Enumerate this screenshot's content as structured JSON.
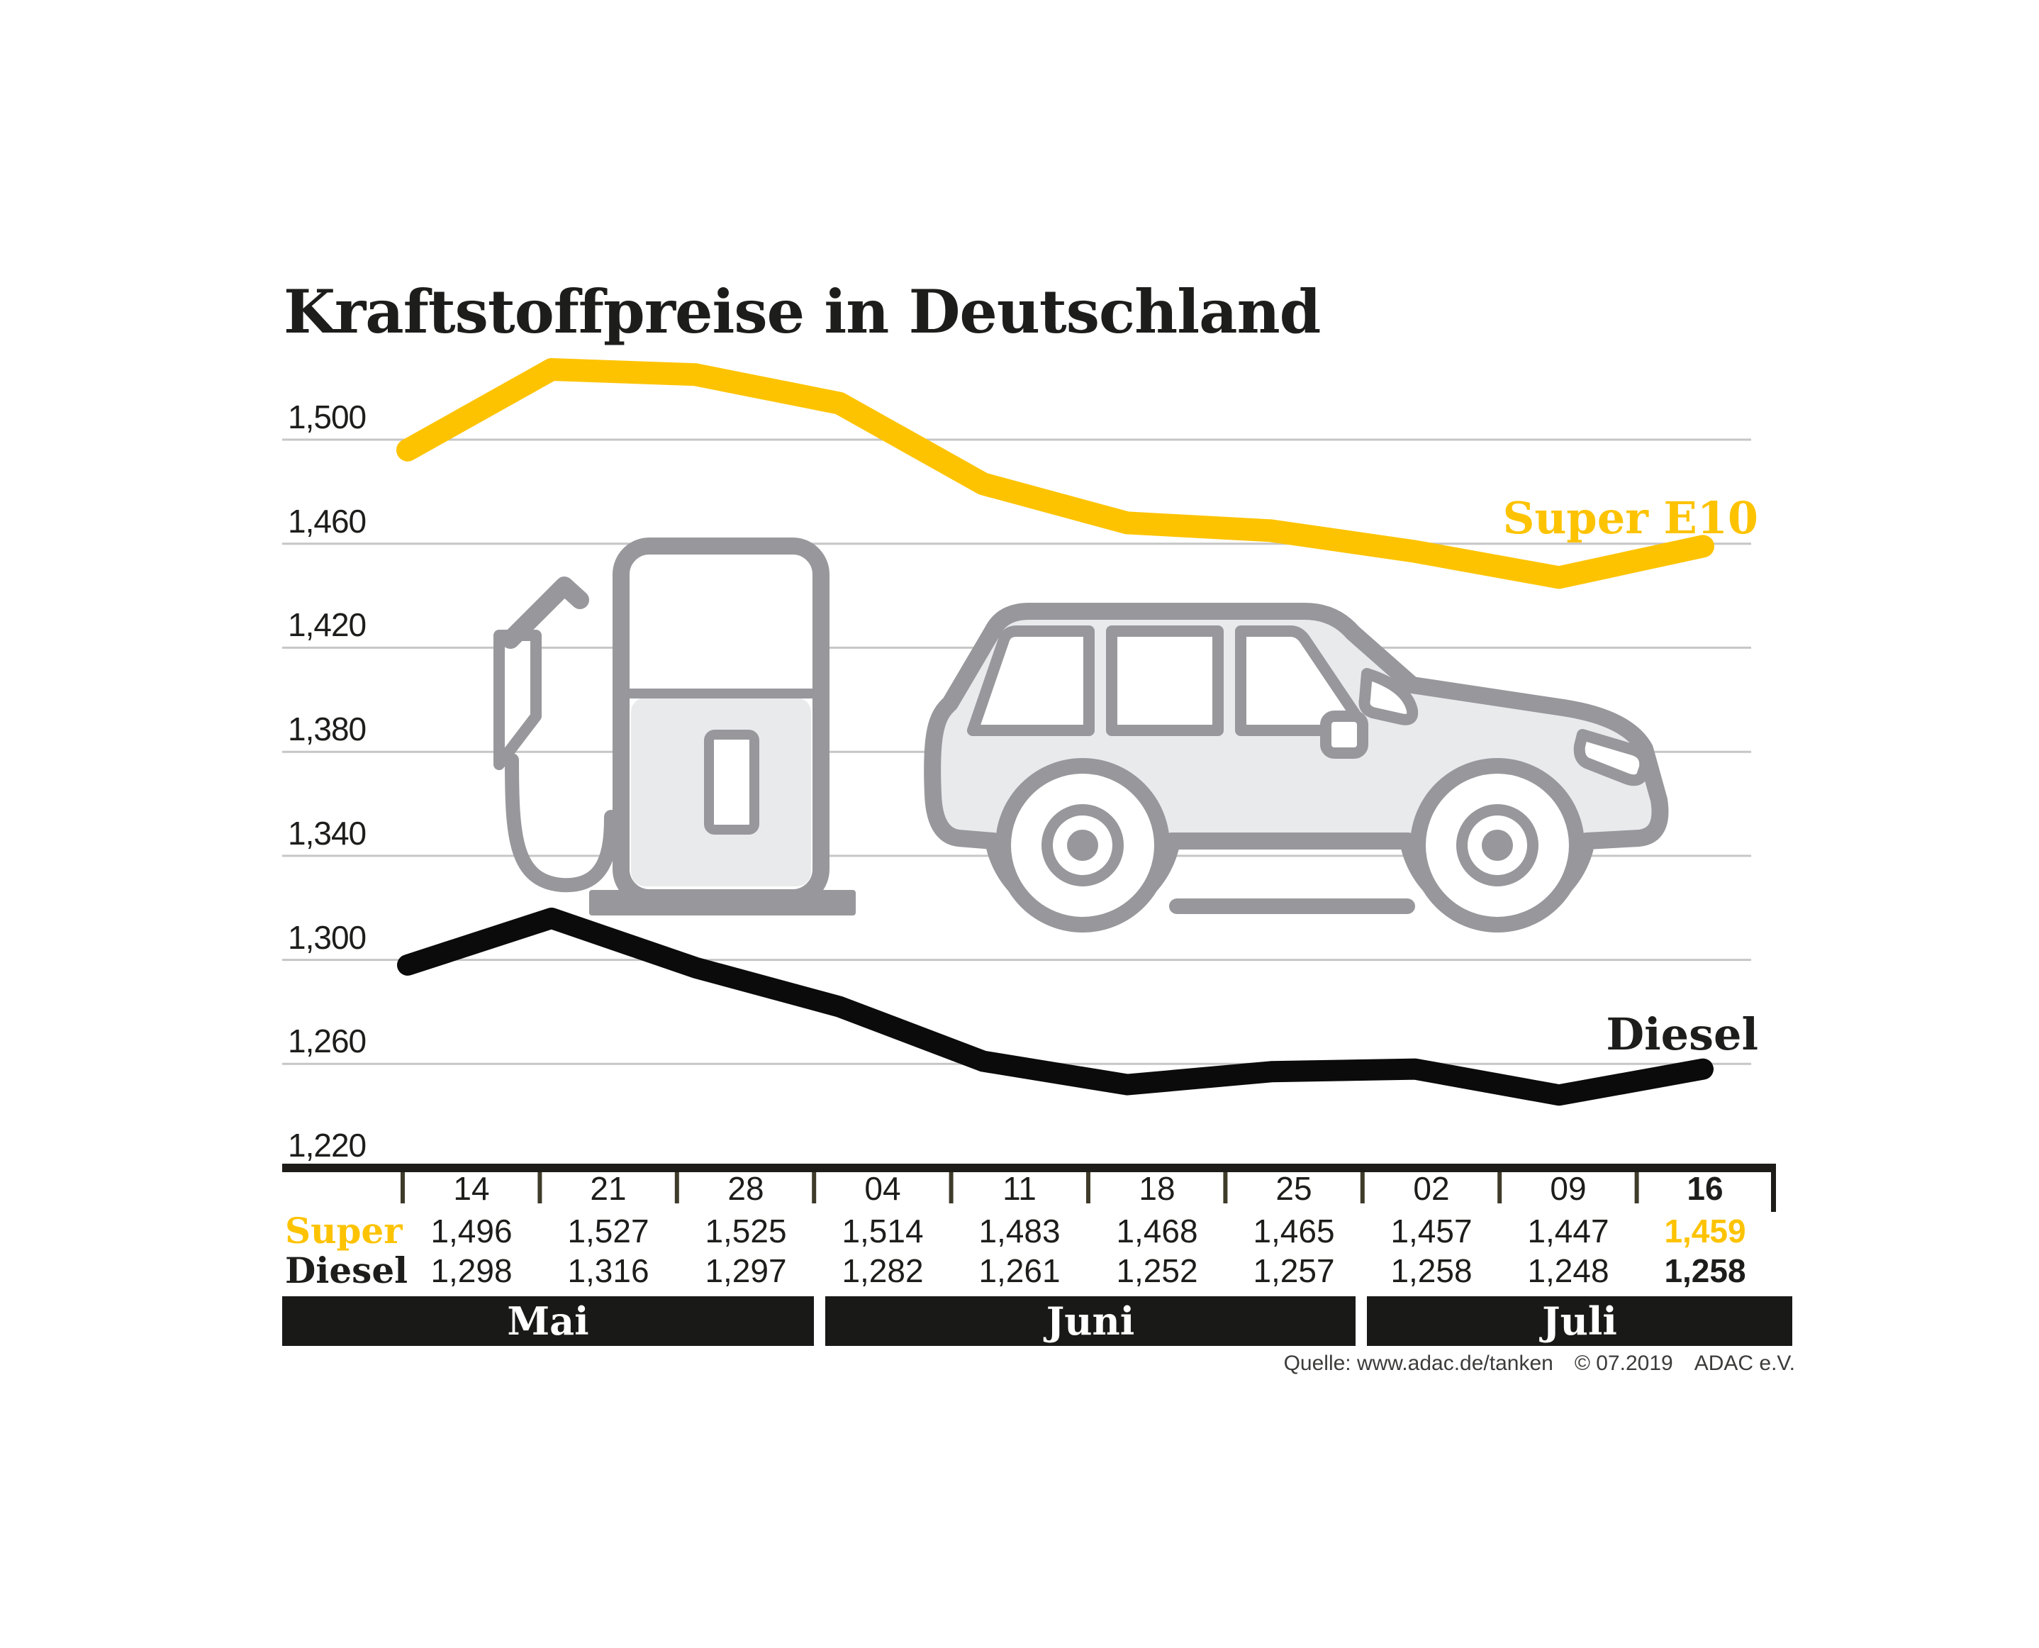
{
  "title": "Kraftstoffpreise in Deutschland",
  "series_inline_labels": {
    "super": "Super E10",
    "diesel": "Diesel"
  },
  "row_labels": {
    "super": "Super",
    "diesel": "Diesel"
  },
  "months": [
    {
      "label": "Mai"
    },
    {
      "label": "Juni"
    },
    {
      "label": "Juli"
    }
  ],
  "source": {
    "quelle": "Quelle: www.adac.de/tanken",
    "copyright": "© 07.2019",
    "org": "ADAC e.V."
  },
  "chart_data": {
    "type": "line",
    "title": "Kraftstoffpreise in Deutschland",
    "categories": [
      "14 Mai",
      "21 Mai",
      "28 Mai",
      "04 Juni",
      "11 Juni",
      "18 Juni",
      "25 Juni",
      "02 Juli",
      "09 Juli",
      "16 Juli"
    ],
    "x_tick_labels": [
      "14",
      "21",
      "28",
      "04",
      "11",
      "18",
      "25",
      "02",
      "09",
      "16"
    ],
    "series": [
      {
        "name": "Super E10",
        "color": "#FDC300",
        "values": [
          1496,
          1527,
          1525,
          1514,
          1483,
          1468,
          1465,
          1457,
          1447,
          1459
        ],
        "labels": [
          "1,496",
          "1,527",
          "1,525",
          "1,514",
          "1,483",
          "1,468",
          "1,465",
          "1,457",
          "1,447",
          "1,459"
        ]
      },
      {
        "name": "Diesel",
        "color": "#0B0B0B",
        "values": [
          1298,
          1316,
          1297,
          1282,
          1261,
          1252,
          1257,
          1258,
          1248,
          1258
        ],
        "labels": [
          "1,298",
          "1,316",
          "1,297",
          "1,282",
          "1,261",
          "1,252",
          "1,257",
          "1,258",
          "1,248",
          "1,258"
        ]
      }
    ],
    "y_axis": {
      "tick_values": [
        1500,
        1460,
        1420,
        1380,
        1340,
        1300,
        1260,
        1220
      ],
      "tick_labels": [
        "1,500",
        "1,460",
        "1,420",
        "1,380",
        "1,340",
        "1,300",
        "1,260",
        "1,220"
      ],
      "grid_values": [
        1500,
        1460,
        1420,
        1380,
        1340,
        1300,
        1260
      ]
    },
    "ylim": [
      1220,
      1545
    ],
    "grid": true,
    "legend": "inline labels at line ends"
  }
}
